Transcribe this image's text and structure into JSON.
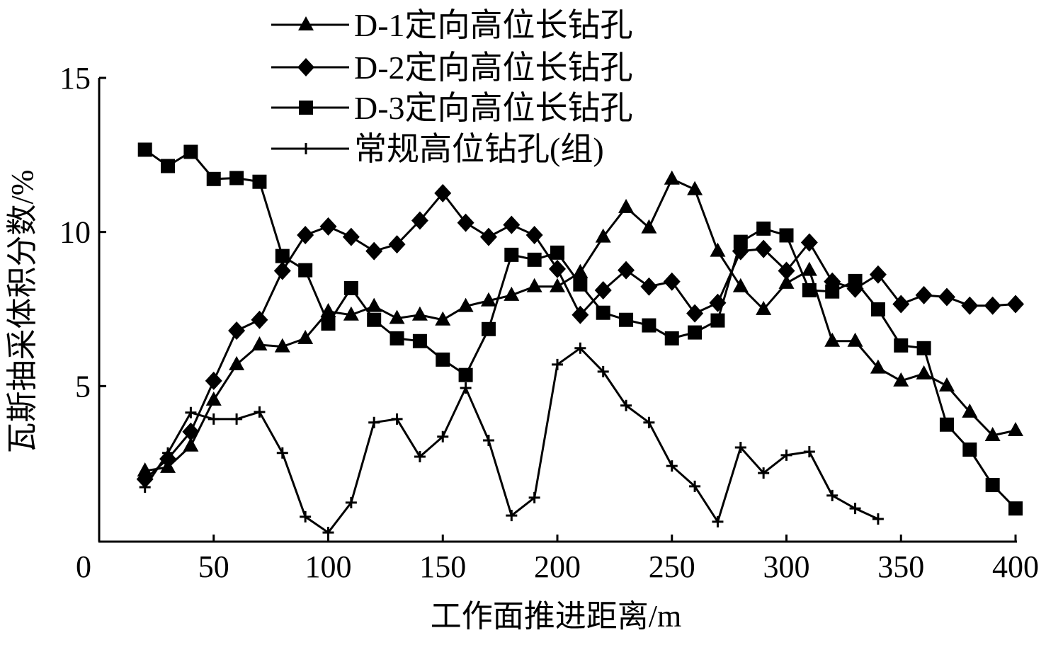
{
  "chart_data": {
    "type": "line",
    "xlabel": "工作面推进距离/m",
    "ylabel": "瓦斯抽采体积分数/%",
    "xlim": [
      0,
      400
    ],
    "ylim": [
      0,
      15
    ],
    "xticks": [
      0,
      50,
      100,
      150,
      200,
      250,
      300,
      350,
      400
    ],
    "yticks": [
      5,
      10,
      15
    ],
    "grid": false,
    "legend_position": "top",
    "series": [
      {
        "name": "D-1定向高位长钻孔",
        "marker": "triangle",
        "x": [
          20,
          30,
          40,
          50,
          60,
          70,
          80,
          90,
          100,
          110,
          120,
          130,
          140,
          150,
          160,
          170,
          180,
          190,
          200,
          210,
          220,
          230,
          240,
          250,
          260,
          270,
          280,
          290,
          300,
          310,
          320,
          330,
          340,
          350,
          360,
          370,
          380,
          390,
          400
        ],
        "y": [
          2.25,
          2.37,
          3.06,
          4.55,
          5.7,
          6.34,
          6.28,
          6.55,
          7.42,
          7.31,
          7.59,
          7.2,
          7.31,
          7.15,
          7.59,
          7.77,
          7.95,
          8.23,
          8.23,
          8.69,
          9.84,
          10.8,
          10.14,
          11.72,
          11.38,
          9.38,
          8.23,
          7.49,
          8.34,
          8.76,
          6.46,
          6.46,
          5.59,
          5.17,
          5.4,
          5.01,
          4.16,
          3.4,
          3.56
        ]
      },
      {
        "name": "D-2定向高位长钻孔",
        "marker": "diamond",
        "x": [
          20,
          30,
          40,
          50,
          60,
          70,
          80,
          90,
          100,
          110,
          120,
          130,
          140,
          150,
          160,
          170,
          180,
          190,
          200,
          210,
          220,
          230,
          240,
          250,
          260,
          270,
          280,
          290,
          300,
          310,
          320,
          330,
          340,
          350,
          360,
          370,
          380,
          390,
          400
        ],
        "y": [
          1.98,
          2.64,
          3.52,
          5.17,
          6.8,
          7.15,
          8.74,
          9.9,
          10.18,
          9.84,
          9.38,
          9.6,
          10.37,
          11.26,
          10.3,
          9.84,
          10.23,
          9.9,
          8.8,
          7.31,
          8.11,
          8.76,
          8.23,
          8.39,
          7.36,
          7.7,
          9.38,
          9.45,
          8.74,
          9.66,
          8.39,
          8.16,
          8.62,
          7.66,
          7.95,
          7.89,
          7.61,
          7.61,
          7.66
        ]
      },
      {
        "name": "D-3定向高位长钻孔",
        "marker": "square",
        "x": [
          20,
          30,
          40,
          50,
          60,
          70,
          80,
          90,
          100,
          110,
          120,
          130,
          140,
          150,
          160,
          170,
          180,
          190,
          200,
          210,
          220,
          230,
          240,
          250,
          260,
          270,
          280,
          290,
          300,
          310,
          320,
          330,
          340,
          350,
          360,
          370,
          380,
          390,
          400
        ],
        "y": [
          12.67,
          12.14,
          12.6,
          11.72,
          11.75,
          11.63,
          9.22,
          8.76,
          7.03,
          8.18,
          7.15,
          6.55,
          6.46,
          5.86,
          5.36,
          6.85,
          9.26,
          9.1,
          9.33,
          8.3,
          7.38,
          7.15,
          6.97,
          6.55,
          6.74,
          7.13,
          9.68,
          10.11,
          9.89,
          8.11,
          8.07,
          8.41,
          7.49,
          6.32,
          6.23,
          3.75,
          2.94,
          1.79,
          1.03
        ]
      },
      {
        "name": "常规高位钻孔(组)",
        "marker": "plus",
        "x": [
          20,
          30,
          40,
          50,
          60,
          70,
          80,
          90,
          100,
          110,
          120,
          130,
          140,
          150,
          160,
          170,
          180,
          190,
          200,
          210,
          220,
          230,
          240,
          250,
          260,
          270,
          280,
          290,
          300,
          310,
          320,
          330,
          340
        ],
        "y": [
          1.72,
          2.83,
          4.14,
          3.93,
          3.93,
          4.16,
          2.83,
          0.76,
          0.25,
          1.22,
          3.82,
          3.93,
          2.71,
          3.36,
          4.94,
          3.24,
          0.8,
          1.38,
          5.7,
          6.23,
          5.47,
          4.37,
          3.82,
          2.41,
          1.75,
          0.6,
          3.01,
          2.18,
          2.76,
          2.87,
          1.45,
          1.03,
          0.69
        ]
      }
    ]
  }
}
